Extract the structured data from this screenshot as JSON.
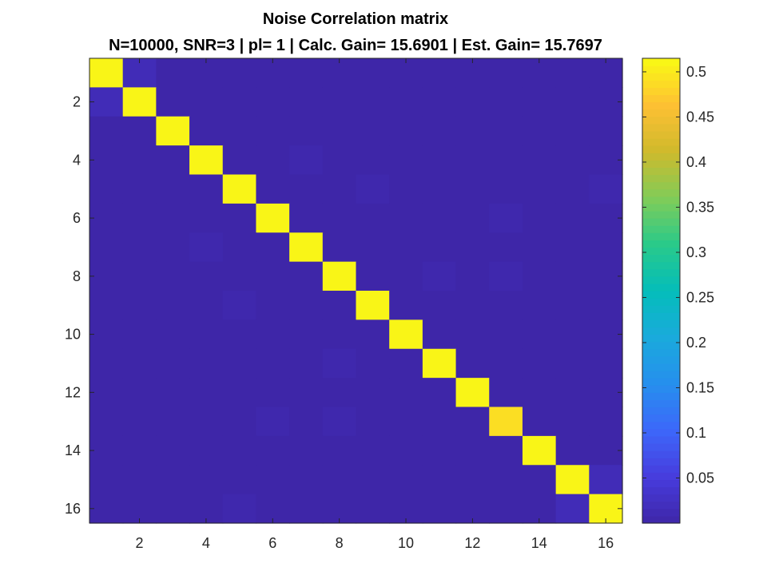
{
  "chart_data": {
    "type": "heatmap",
    "title": "Noise Correlation matrix",
    "subtitle": "N=10000, SNR=3 | pl= 1 | Calc. Gain= 15.6901 | Est. Gain= 15.7697",
    "xlabel": "",
    "ylabel": "",
    "rows": 16,
    "cols": 16,
    "x_ticks": [
      2,
      4,
      6,
      8,
      10,
      12,
      14,
      16
    ],
    "y_ticks": [
      2,
      4,
      6,
      8,
      10,
      12,
      14,
      16
    ],
    "y_direction": "reverse",
    "colormap": "parula",
    "clim": [
      0.0,
      0.515
    ],
    "colorbar_ticks": [
      "0.05",
      "0.1",
      "0.15",
      "0.2",
      "0.25",
      "0.3",
      "0.35",
      "0.4",
      "0.45",
      "0.5"
    ],
    "colorbar_placement": "right",
    "grid": false,
    "diagonal": [
      0.51,
      0.51,
      0.51,
      0.51,
      0.51,
      0.51,
      0.51,
      0.51,
      0.51,
      0.51,
      0.51,
      0.51,
      0.49,
      0.51,
      0.51,
      0.51
    ],
    "background_value": 0.0,
    "off_diagonal": [
      {
        "row": 1,
        "col": 2,
        "value": 0.015
      },
      {
        "row": 2,
        "col": 1,
        "value": 0.015
      },
      {
        "row": 4,
        "col": 7,
        "value": 0.005
      },
      {
        "row": 5,
        "col": 9,
        "value": 0.005
      },
      {
        "row": 5,
        "col": 16,
        "value": 0.005
      },
      {
        "row": 6,
        "col": 13,
        "value": 0.005
      },
      {
        "row": 7,
        "col": 4,
        "value": 0.005
      },
      {
        "row": 8,
        "col": 11,
        "value": 0.005
      },
      {
        "row": 8,
        "col": 13,
        "value": 0.005
      },
      {
        "row": 9,
        "col": 5,
        "value": 0.005
      },
      {
        "row": 11,
        "col": 8,
        "value": 0.005
      },
      {
        "row": 13,
        "col": 6,
        "value": 0.005
      },
      {
        "row": 13,
        "col": 8,
        "value": 0.005
      },
      {
        "row": 15,
        "col": 16,
        "value": 0.015
      },
      {
        "row": 16,
        "col": 15,
        "value": 0.015
      },
      {
        "row": 16,
        "col": 5,
        "value": 0.005
      }
    ]
  }
}
